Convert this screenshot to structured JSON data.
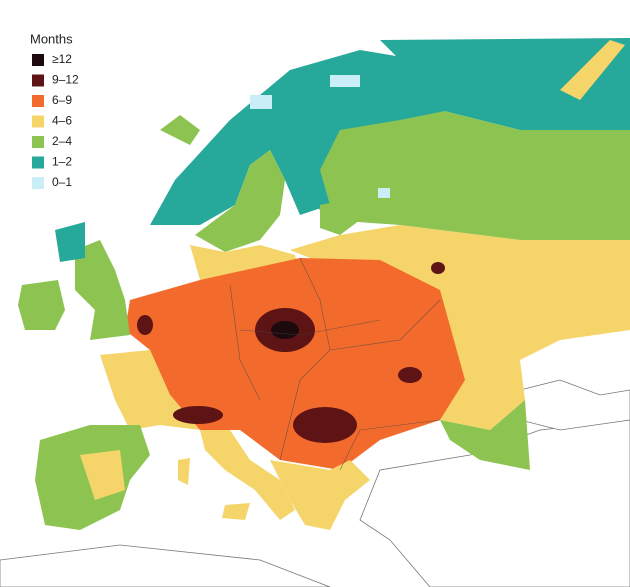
{
  "legend": {
    "title": "Months",
    "items": [
      {
        "label": "≥12",
        "color": "#1c0a0c"
      },
      {
        "label": "9–12",
        "color": "#5e1414"
      },
      {
        "label": "6–9",
        "color": "#f26b2c"
      },
      {
        "label": "4–6",
        "color": "#f5d469"
      },
      {
        "label": "2–4",
        "color": "#8dc451"
      },
      {
        "label": "1–2",
        "color": "#26a99a"
      },
      {
        "label": "0–1",
        "color": "#c9eef7"
      }
    ]
  }
}
